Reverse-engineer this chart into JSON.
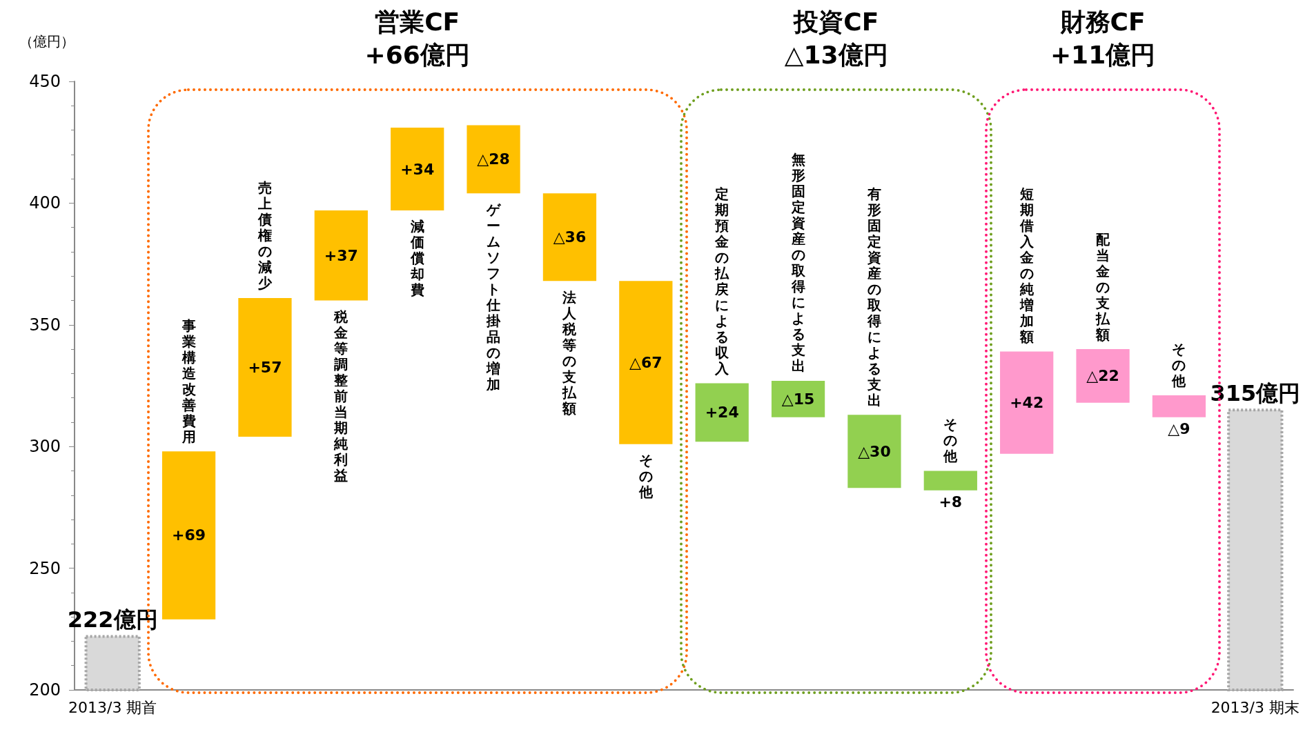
{
  "chart_data": {
    "type": "bar",
    "ylabel": "（億円）",
    "categories": [
      "2013/3 期首",
      "事業構造改善費用",
      "売上債権の減少",
      "税金等調整前当期純利益",
      "減価償却費",
      "ゲームソフト仕掛品の増加",
      "法人税等の支払額",
      "その他",
      "定期預金の払戻による収入",
      "無形固定資産の取得による支出",
      "有形固定資産の取得による支出",
      "その他",
      "短期借入金の純増加額",
      "配当金の支払額",
      "その他",
      "2013/3 期末"
    ],
    "values": [
      222,
      69,
      57,
      37,
      34,
      -28,
      -36,
      -67,
      24,
      -15,
      -30,
      8,
      42,
      -22,
      -9,
      315
    ],
    "base": [
      null,
      229,
      304,
      360,
      397,
      432,
      404,
      368,
      302,
      327,
      313,
      282,
      297,
      340,
      321,
      null
    ],
    "value_labels": [
      "222億円",
      "+69",
      "+57",
      "+37",
      "+34",
      "△28",
      "△36",
      "△67",
      "+24",
      "△15",
      "△30",
      "+8",
      "+42",
      "△22",
      "△9",
      "315億円"
    ],
    "colors": [
      "#d9d9d9",
      "#ffc000",
      "#ffc000",
      "#ffc000",
      "#ffc000",
      "#ffc000",
      "#ffc000",
      "#ffc000",
      "#92d050",
      "#92d050",
      "#92d050",
      "#92d050",
      "#ff99cc",
      "#ff99cc",
      "#ff99cc",
      "#d9d9d9"
    ],
    "ylim": [
      200,
      450
    ],
    "yticks": [
      200,
      250,
      300,
      350,
      400,
      450
    ],
    "grid": false,
    "annotations": [
      "営業CF\n+66億円",
      "投資CF\n△13億円",
      "財務CF\n+11億円"
    ]
  }
}
